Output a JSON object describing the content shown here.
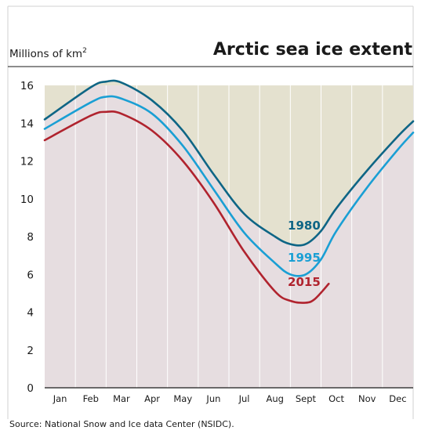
{
  "chart_data": {
    "type": "line",
    "title": "Arctic sea ice extent",
    "ylabel_main": "Millions of km",
    "ylabel_sup": "2",
    "source": "Source: National Snow and Ice data Center (NSIDC).",
    "categories": [
      "Jan",
      "Feb",
      "Mar",
      "Apr",
      "May",
      "Jun",
      "Jul",
      "Aug",
      "Sept",
      "Oct",
      "Nov",
      "Dec"
    ],
    "ylim": [
      0,
      16
    ],
    "yticks": [
      "0",
      "2",
      "4",
      "6",
      "8",
      "10",
      "12",
      "14",
      "16"
    ],
    "grid": "vertical",
    "series": [
      {
        "name": "1980",
        "color": "#0e6585",
        "x": [
          0.0,
          1.0,
          1.5,
          2.0,
          3.0,
          4.0,
          5.0,
          6.0,
          7.0,
          7.5,
          8.0,
          8.5,
          9.0,
          10.0,
          11.0,
          11.5
        ],
        "y": [
          14.2,
          15.9,
          16.2,
          16.15,
          15.2,
          13.6,
          11.3,
          9.2,
          8.0,
          7.6,
          7.6,
          8.3,
          9.5,
          11.5,
          13.3,
          14.1
        ]
      },
      {
        "name": "1995",
        "color": "#1a9fd4",
        "x": [
          0.0,
          1.0,
          1.5,
          2.0,
          3.0,
          4.0,
          5.0,
          6.0,
          7.0,
          7.5,
          8.0,
          8.5,
          9.0,
          10.0,
          11.0,
          11.5
        ],
        "y": [
          13.7,
          15.1,
          15.4,
          15.3,
          14.5,
          12.8,
          10.5,
          8.2,
          6.6,
          6.0,
          6.0,
          6.8,
          8.3,
          10.6,
          12.6,
          13.5
        ]
      },
      {
        "name": "2015",
        "color": "#b0232e",
        "x": [
          0.0,
          1.0,
          1.5,
          2.0,
          3.0,
          4.0,
          5.0,
          6.0,
          7.0,
          7.5,
          8.0,
          8.3,
          8.75
        ],
        "y": [
          13.1,
          14.4,
          14.6,
          14.5,
          13.6,
          12.0,
          9.8,
          7.2,
          5.1,
          4.6,
          4.5,
          4.7,
          5.5
        ]
      }
    ],
    "labels": [
      {
        "text": "1980",
        "x": 8.0,
        "y": 8.3,
        "color": "#0e6585"
      },
      {
        "text": "1995",
        "x": 8.0,
        "y": 6.6,
        "color": "#1a9fd4"
      },
      {
        "text": "2015",
        "x": 8.0,
        "y": 5.3,
        "color": "#b0232e"
      }
    ],
    "colors": {
      "band_upper": "#e4e1cf",
      "band_lower": "#e6dde0",
      "grid": "#ffffff",
      "axis": "#1a1a1a"
    }
  }
}
